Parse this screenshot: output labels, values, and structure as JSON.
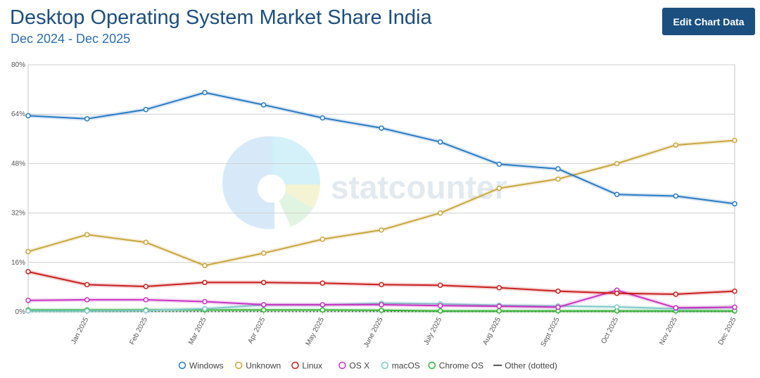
{
  "header": {
    "title": "Desktop Operating System Market Share India",
    "subtitle": "Dec 2024 - Dec 2025",
    "edit_button": "Edit Chart Data"
  },
  "watermark": {
    "text": "statcounter"
  },
  "chart_data": {
    "type": "line",
    "categories": [
      "Dec 2024",
      "Jan 2025",
      "Feb 2025",
      "Mar 2025",
      "Apr 2025",
      "May 2025",
      "June 2025",
      "July 2025",
      "Aug 2025",
      "Sept 2025",
      "Oct 2025",
      "Nov 2025",
      "Dec 2025"
    ],
    "x_tick_labels": [
      "Jan 2025",
      "Feb 2025",
      "Mar 2025",
      "Apr 2025",
      "May 2025",
      "June 2025",
      "July 2025",
      "Aug 2025",
      "Sept 2025",
      "Oct 2025",
      "Nov 2025",
      "Dec 2025"
    ],
    "ylim": [
      0,
      80
    ],
    "y_ticks": [
      0,
      16,
      32,
      48,
      64,
      80
    ],
    "y_tick_format": "percent",
    "grid": true,
    "legend_position": "bottom",
    "series": [
      {
        "name": "Windows",
        "color": "#2a7ac2",
        "values": [
          63.5,
          62.5,
          65.5,
          71.0,
          67.0,
          62.8,
          59.5,
          55.0,
          47.8,
          46.3,
          38.0,
          37.5,
          35.0
        ]
      },
      {
        "name": "Unknown",
        "color": "#c8a63e",
        "values": [
          19.5,
          25.0,
          22.5,
          15.0,
          19.0,
          23.5,
          26.5,
          32.0,
          40.0,
          43.0,
          48.0,
          54.0,
          55.5
        ]
      },
      {
        "name": "Linux",
        "color": "#c81e1e",
        "values": [
          13.0,
          8.8,
          8.2,
          9.5,
          9.5,
          9.3,
          8.8,
          8.6,
          7.8,
          6.7,
          6.0,
          5.7,
          6.7
        ]
      },
      {
        "name": "OS X",
        "color": "#c832c0",
        "values": [
          3.7,
          3.9,
          3.9,
          3.3,
          2.3,
          2.3,
          2.3,
          2.0,
          1.8,
          1.5,
          7.0,
          1.3,
          1.5
        ]
      },
      {
        "name": "macOS",
        "color": "#7ec8c8",
        "values": [
          0.3,
          0.3,
          0.4,
          1.0,
          2.2,
          2.2,
          2.8,
          2.6,
          2.1,
          1.9,
          1.6,
          1.0,
          1.5
        ]
      },
      {
        "name": "Chrome OS",
        "color": "#32b432",
        "values": [
          0.6,
          0.6,
          0.6,
          0.6,
          0.6,
          0.6,
          0.5,
          0.3,
          0.3,
          0.3,
          0.3,
          0.3,
          0.3
        ]
      },
      {
        "name": "Other (dotted)",
        "color": "#555555",
        "dotted": true,
        "values": [
          0.1,
          0.1,
          0.1,
          0.1,
          0.1,
          0.1,
          0.1,
          0.1,
          0.1,
          0.1,
          0.1,
          0.1,
          0.1
        ]
      }
    ]
  }
}
